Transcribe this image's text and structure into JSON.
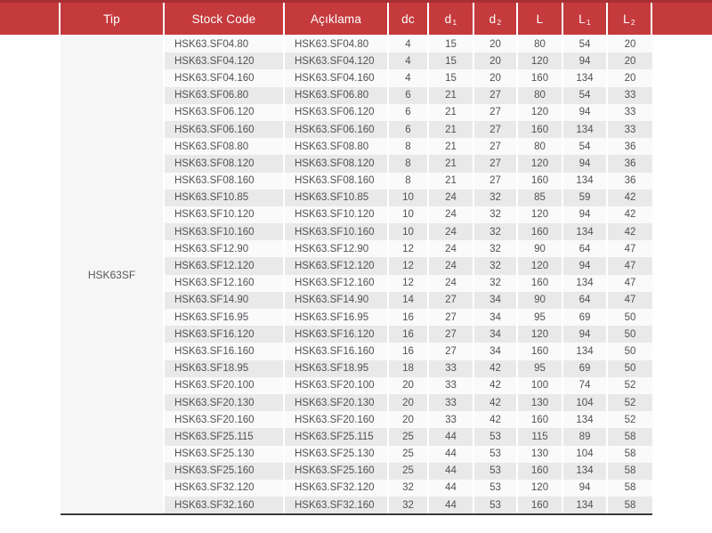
{
  "colors": {
    "header_red": "#c53a3d",
    "header_red_dark": "#a63033",
    "header_text": "#ffffff",
    "row_light": "#fafafa",
    "row_dark": "#e9e9e9",
    "tip_cell_bg": "#f6f6f6",
    "body_text": "#505156",
    "bottom_rule": "#3c3c3e"
  },
  "table": {
    "tip_value": "HSK63SF",
    "headers": {
      "tip": "Tip",
      "stock_code": "Stock Code",
      "aciklama": "Açıklama",
      "dc": "dc",
      "d1": {
        "base": "d",
        "sub": "1"
      },
      "d2": {
        "base": "d",
        "sub": "2"
      },
      "l": {
        "base": "L",
        "sub": ""
      },
      "l1": {
        "base": "L",
        "sub": "1"
      },
      "l2": {
        "base": "L",
        "sub": "2"
      }
    },
    "rows": [
      [
        "HSK63.SF04.80",
        "HSK63.SF04.80",
        "4",
        "15",
        "20",
        "80",
        "54",
        "20"
      ],
      [
        "HSK63.SF04.120",
        "HSK63.SF04.120",
        "4",
        "15",
        "20",
        "120",
        "94",
        "20"
      ],
      [
        "HSK63.SF04.160",
        "HSK63.SF04.160",
        "4",
        "15",
        "20",
        "160",
        "134",
        "20"
      ],
      [
        "HSK63.SF06.80",
        "HSK63.SF06.80",
        "6",
        "21",
        "27",
        "80",
        "54",
        "33"
      ],
      [
        "HSK63.SF06.120",
        "HSK63.SF06.120",
        "6",
        "21",
        "27",
        "120",
        "94",
        "33"
      ],
      [
        "HSK63.SF06.160",
        "HSK63.SF06.160",
        "6",
        "21",
        "27",
        "160",
        "134",
        "33"
      ],
      [
        "HSK63.SF08.80",
        "HSK63.SF08.80",
        "8",
        "21",
        "27",
        "80",
        "54",
        "36"
      ],
      [
        "HSK63.SF08.120",
        "HSK63.SF08.120",
        "8",
        "21",
        "27",
        "120",
        "94",
        "36"
      ],
      [
        "HSK63.SF08.160",
        "HSK63.SF08.160",
        "8",
        "21",
        "27",
        "160",
        "134",
        "36"
      ],
      [
        "HSK63.SF10.85",
        "HSK63.SF10.85",
        "10",
        "24",
        "32",
        "85",
        "59",
        "42"
      ],
      [
        "HSK63.SF10.120",
        "HSK63.SF10.120",
        "10",
        "24",
        "32",
        "120",
        "94",
        "42"
      ],
      [
        "HSK63.SF10.160",
        "HSK63.SF10.160",
        "10",
        "24",
        "32",
        "160",
        "134",
        "42"
      ],
      [
        "HSK63.SF12.90",
        "HSK63.SF12.90",
        "12",
        "24",
        "32",
        "90",
        "64",
        "47"
      ],
      [
        "HSK63.SF12.120",
        "HSK63.SF12.120",
        "12",
        "24",
        "32",
        "120",
        "94",
        "47"
      ],
      [
        "HSK63.SF12.160",
        "HSK63.SF12.160",
        "12",
        "24",
        "32",
        "160",
        "134",
        "47"
      ],
      [
        "HSK63.SF14.90",
        "HSK63.SF14.90",
        "14",
        "27",
        "34",
        "90",
        "64",
        "47"
      ],
      [
        "HSK63.SF16.95",
        "HSK63.SF16.95",
        "16",
        "27",
        "34",
        "95",
        "69",
        "50"
      ],
      [
        "HSK63.SF16.120",
        "HSK63.SF16.120",
        "16",
        "27",
        "34",
        "120",
        "94",
        "50"
      ],
      [
        "HSK63.SF16.160",
        "HSK63.SF16.160",
        "16",
        "27",
        "34",
        "160",
        "134",
        "50"
      ],
      [
        "HSK63.SF18.95",
        "HSK63.SF18.95",
        "18",
        "33",
        "42",
        "95",
        "69",
        "50"
      ],
      [
        "HSK63.SF20.100",
        "HSK63.SF20.100",
        "20",
        "33",
        "42",
        "100",
        "74",
        "52"
      ],
      [
        "HSK63.SF20.130",
        "HSK63.SF20.130",
        "20",
        "33",
        "42",
        "130",
        "104",
        "52"
      ],
      [
        "HSK63.SF20.160",
        "HSK63.SF20.160",
        "20",
        "33",
        "42",
        "160",
        "134",
        "52"
      ],
      [
        "HSK63.SF25.115",
        "HSK63.SF25.115",
        "25",
        "44",
        "53",
        "115",
        "89",
        "58"
      ],
      [
        "HSK63.SF25.130",
        "HSK63.SF25.130",
        "25",
        "44",
        "53",
        "130",
        "104",
        "58"
      ],
      [
        "HSK63.SF25.160",
        "HSK63.SF25.160",
        "25",
        "44",
        "53",
        "160",
        "134",
        "58"
      ],
      [
        "HSK63.SF32.120",
        "HSK63.SF32.120",
        "32",
        "44",
        "53",
        "120",
        "94",
        "58"
      ],
      [
        "HSK63.SF32.160",
        "HSK63.SF32.160",
        "32",
        "44",
        "53",
        "160",
        "134",
        "58"
      ]
    ]
  }
}
